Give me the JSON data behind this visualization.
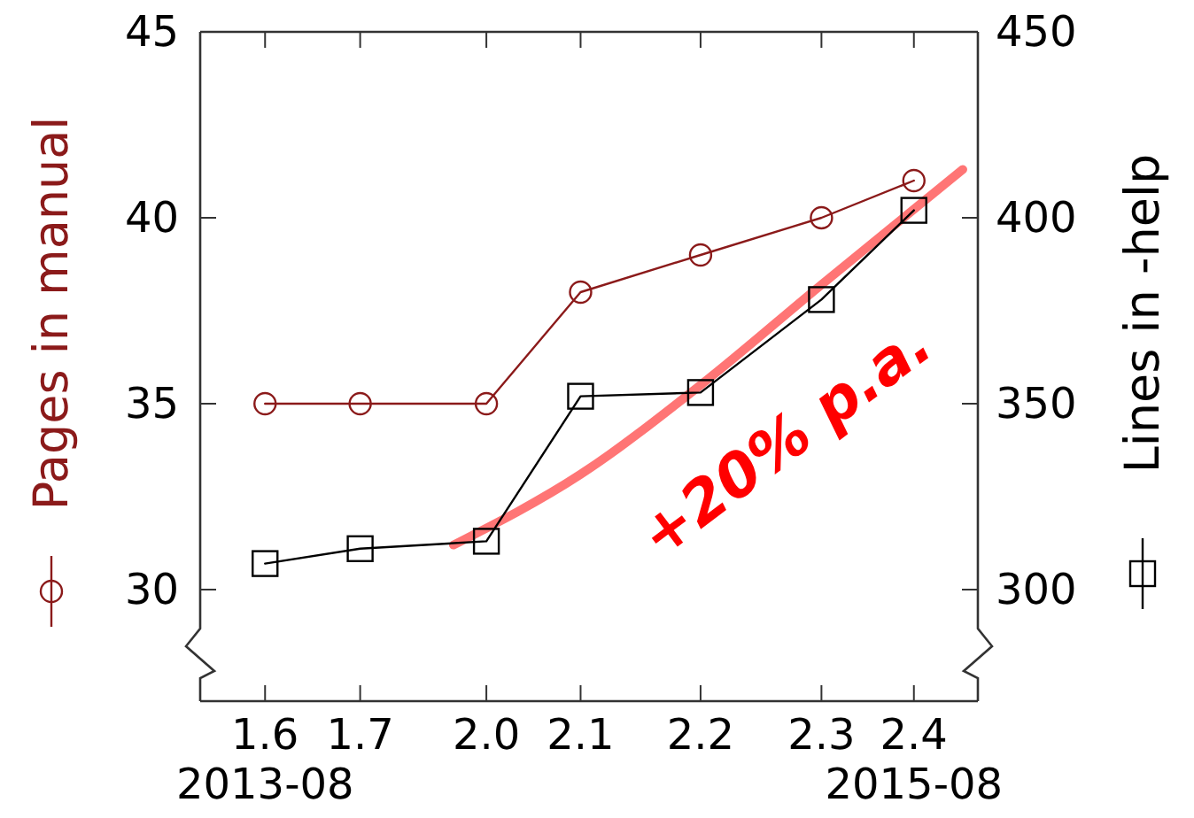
{
  "chart_data": {
    "type": "line",
    "ylabel": "Pages in manual",
    "y2label": "Lines in -help",
    "x": [
      "2013-08-01",
      "2013-11-16",
      "2014-04-07",
      "2014-07-22",
      "2014-12-04",
      "2015-04-19",
      "2015-08-01"
    ],
    "xlim": [
      "2013-05-20",
      "2015-10-12"
    ],
    "xticks": [
      {
        "value": "2013-08-01",
        "label": "1.6\n2013-08"
      },
      {
        "value": "2013-11-16",
        "label": "1.7"
      },
      {
        "value": "2014-04-07",
        "label": "2.0"
      },
      {
        "value": "2014-07-22",
        "label": "2.1"
      },
      {
        "value": "2014-12-04",
        "label": "2.2"
      },
      {
        "value": "2015-04-19",
        "label": "2.3"
      },
      {
        "value": "2015-08-01",
        "label": "2.4\n2015-08"
      }
    ],
    "ylim": [
      27,
      45
    ],
    "yticks": [
      30,
      35,
      40,
      45
    ],
    "y2lim": [
      270,
      450
    ],
    "y2ticks": [
      300,
      350,
      400,
      450
    ],
    "series": [
      {
        "color": "#8b1a1a",
        "marker": "circle",
        "values": [
          35,
          35,
          35,
          38,
          39,
          40,
          41
        ]
      },
      {
        "color": "#000000",
        "marker": "square",
        "axis": "y2",
        "values": [
          307,
          311,
          313,
          352,
          353,
          378,
          402
        ]
      },
      {
        "color": "#ff6666",
        "marker": "none",
        "axis": "y2",
        "x": [
          "2014-03-01",
          "2014-07-22",
          "2014-12-04",
          "2015-04-19",
          "2015-09-25"
        ],
        "values": [
          312,
          331,
          355,
          382,
          413
        ]
      }
    ],
    "annotations": [
      "+20% p.a."
    ],
    "grid": false
  }
}
